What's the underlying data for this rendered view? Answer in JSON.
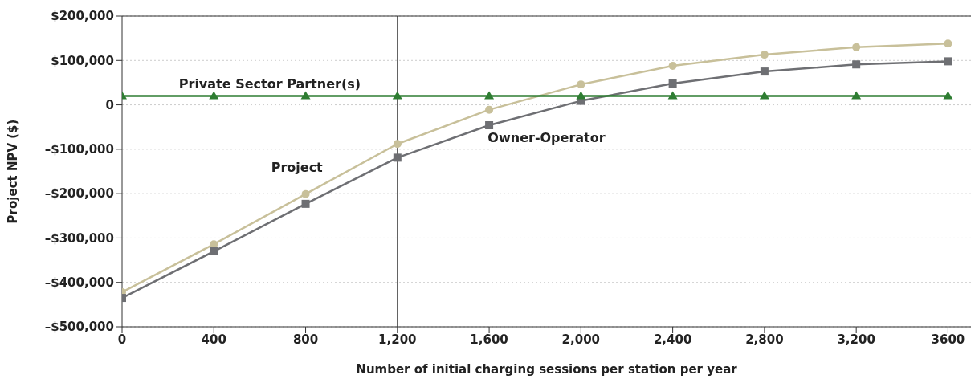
{
  "chart_data": {
    "type": "line",
    "xlabel": "Number of initial charging sessions per station per year",
    "ylabel": "Project NPV ($)",
    "x": [
      0,
      400,
      800,
      1200,
      1600,
      2000,
      2400,
      2800,
      3200,
      3600
    ],
    "series": [
      {
        "name": "Project",
        "color": "#c8c09a",
        "marker": "circle",
        "values": [
          -422000,
          -314000,
          -201000,
          -88000,
          -11000,
          46000,
          88000,
          113000,
          130000,
          138000
        ]
      },
      {
        "name": "Owner-Operator",
        "color": "#6e6f73",
        "marker": "square",
        "values": [
          -435000,
          -330000,
          -223000,
          -119000,
          -46000,
          9000,
          48000,
          75000,
          91000,
          98000
        ]
      },
      {
        "name": "Private Sector Partner(s)",
        "color": "#2e7d32",
        "marker": "triangle",
        "values": [
          20000,
          20000,
          20000,
          20000,
          20000,
          20000,
          20000,
          20000,
          20000,
          20000
        ]
      }
    ],
    "xlim": [
      0,
      3700
    ],
    "xticks": [
      0,
      400,
      800,
      {
        "value": 1200,
        "label": "1,200"
      },
      {
        "value": 1600,
        "label": "1,600"
      },
      {
        "value": 2000,
        "label": "2,000"
      },
      {
        "value": 2400,
        "label": "2,400"
      },
      {
        "value": 2800,
        "label": "2,800"
      },
      {
        "value": 3200,
        "label": "3,200"
      },
      3600
    ],
    "ylim": [
      -500000,
      200000
    ],
    "yticks": [
      {
        "value": -500000,
        "label": "–$500,000"
      },
      {
        "value": -400000,
        "label": "–$400,000"
      },
      {
        "value": -300000,
        "label": "–$300,000"
      },
      {
        "value": -200000,
        "label": "–$200,000"
      },
      {
        "value": -100000,
        "label": "–$100,000"
      },
      0,
      {
        "value": 100000,
        "label": "$100,000"
      },
      {
        "value": 200000,
        "label": "$200,000"
      }
    ],
    "ref_lines": [
      {
        "axis": "x",
        "value": 1200,
        "color": "#222222"
      }
    ],
    "grid": "y",
    "legend": false,
    "line_style": "solid"
  }
}
